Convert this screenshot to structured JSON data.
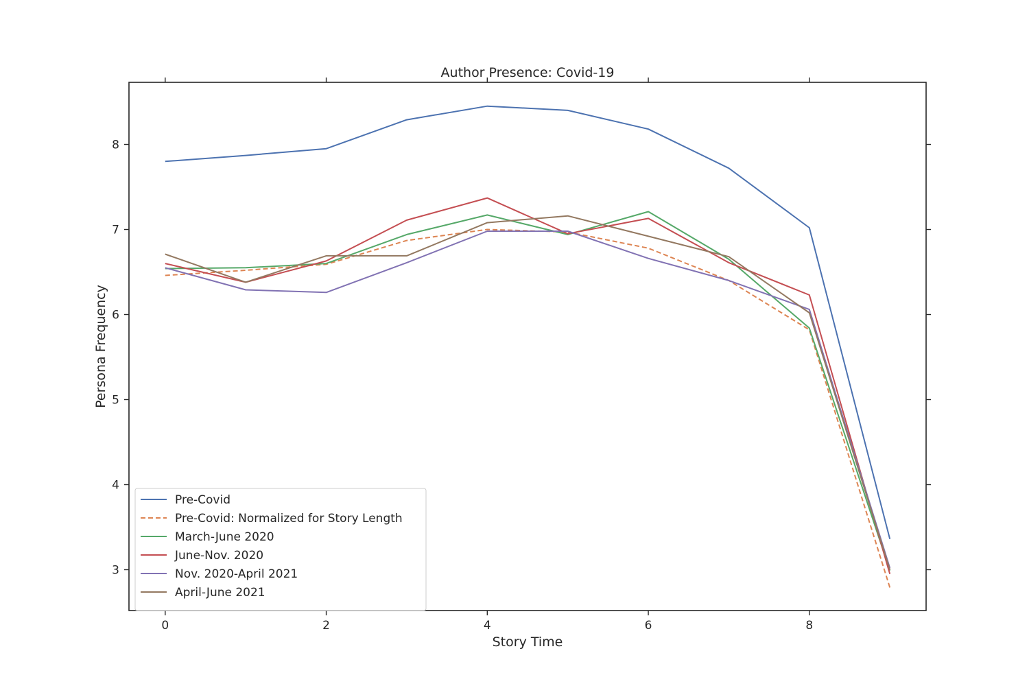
{
  "chart_data": {
    "type": "line",
    "title": "Author Presence: Covid-19",
    "xlabel": "Story Time",
    "ylabel": "Persona Frequency",
    "xlim": [
      -0.45,
      9.45
    ],
    "ylim": [
      2.52,
      8.73
    ],
    "xticks": [
      0,
      2,
      4,
      6,
      8
    ],
    "yticks": [
      3,
      4,
      5,
      6,
      7,
      8
    ],
    "grid": false,
    "legend_position": "lower-left",
    "x": [
      0,
      1,
      2,
      3,
      4,
      5,
      6,
      7,
      8,
      9
    ],
    "series": [
      {
        "name": "Pre-Covid",
        "color": "#4c72b0",
        "style": "solid",
        "values": [
          7.8,
          7.87,
          7.95,
          8.29,
          8.45,
          8.4,
          8.18,
          7.72,
          7.02,
          3.36
        ]
      },
      {
        "name": "Pre-Covid: Normalized for Story Length",
        "color": "#dd8452",
        "style": "dashed",
        "values": [
          6.46,
          6.52,
          6.59,
          6.87,
          7.0,
          6.97,
          6.78,
          6.4,
          5.82,
          2.79
        ]
      },
      {
        "name": "March-June 2020",
        "color": "#55a868",
        "style": "solid",
        "values": [
          6.54,
          6.55,
          6.6,
          6.94,
          7.17,
          6.94,
          7.21,
          6.65,
          5.84,
          2.99
        ]
      },
      {
        "name": "June-Nov. 2020",
        "color": "#c44e52",
        "style": "solid",
        "values": [
          6.6,
          6.38,
          6.63,
          7.11,
          7.37,
          6.95,
          7.13,
          6.61,
          6.23,
          2.95
        ]
      },
      {
        "name": "Nov. 2020-April 2021",
        "color": "#8172b3",
        "style": "solid",
        "values": [
          6.55,
          6.29,
          6.26,
          6.61,
          6.98,
          6.98,
          6.66,
          6.4,
          6.06,
          3.02
        ]
      },
      {
        "name": "April-June 2021",
        "color": "#937860",
        "style": "solid",
        "values": [
          6.71,
          6.38,
          6.69,
          6.69,
          7.08,
          7.16,
          6.92,
          6.68,
          6.02,
          3.0
        ]
      }
    ]
  }
}
